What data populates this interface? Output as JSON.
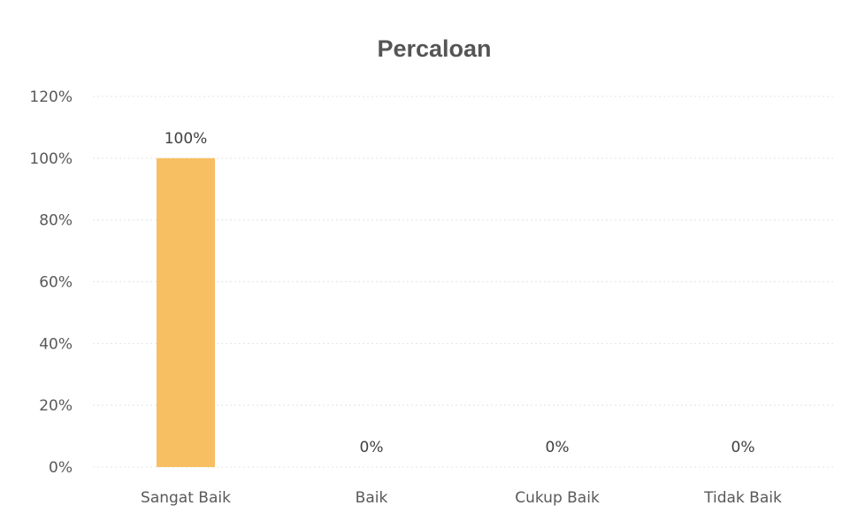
{
  "chart_data": {
    "type": "bar",
    "title": "Percaloan",
    "categories": [
      "Sangat Baik",
      "Baik",
      "Cukup Baik",
      "Tidak Baik"
    ],
    "values": [
      100,
      0,
      0,
      0
    ],
    "value_labels": [
      "100%",
      "0%",
      "0%",
      "0%"
    ],
    "ylim": [
      0,
      120
    ],
    "yticks": [
      0,
      20,
      40,
      60,
      80,
      100,
      120
    ],
    "ytick_labels": [
      "0%",
      "20%",
      "40%",
      "60%",
      "80%",
      "100%",
      "120%"
    ],
    "grid": true,
    "bar_color": "#F7BE62",
    "xlabel": "",
    "ylabel": ""
  }
}
